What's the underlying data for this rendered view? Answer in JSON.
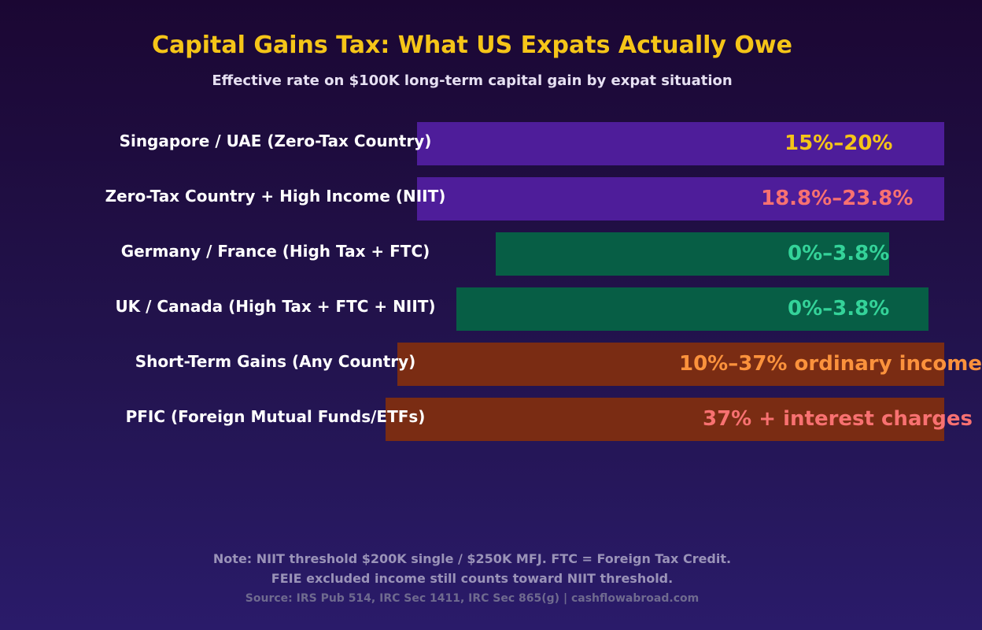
{
  "chart_data": {
    "type": "bar",
    "orientation": "horizontal",
    "title": "Capital Gains Tax: What US Expats Actually Owe",
    "subtitle": "Effective rate on $100K long-term capital gain by expat situation",
    "categories": [
      "Singapore / UAE (Zero-Tax Country)",
      "Zero-Tax Country + High Income (NIIT)",
      "Germany / France (High Tax + FTC)",
      "UK / Canada (High Tax + FTC + NIIT)",
      "Short-Term Gains (Any Country)",
      "PFIC (Foreign Mutual Funds/ETFs)"
    ],
    "values": [
      20,
      23.8,
      3.8,
      3.8,
      37,
      37
    ],
    "value_labels": [
      "15%–20%",
      "18.8%–23.8%",
      "0%–3.8%",
      "0%–3.8%",
      "10%–37% ordinary income",
      "37% + interest charges"
    ],
    "bar_colors": [
      "#4e1d9a",
      "#4e1d9a",
      "#075e45",
      "#075e45",
      "#7a2c13",
      "#7a2c13"
    ],
    "value_label_colors": [
      "#f5c518",
      "#f87171",
      "#34d399",
      "#34d399",
      "#fb923c",
      "#f87171"
    ],
    "grid": false,
    "legend": "none"
  },
  "notes": {
    "line1": "Note: NIIT threshold $200K single / $250K MFJ. FTC = Foreign Tax Credit.",
    "line2": "FEIE excluded income still counts toward NIIT threshold.",
    "source": "Source: IRS Pub 514, IRC Sec 1411, IRC Sec 865(g) | cashflowabroad.com"
  }
}
